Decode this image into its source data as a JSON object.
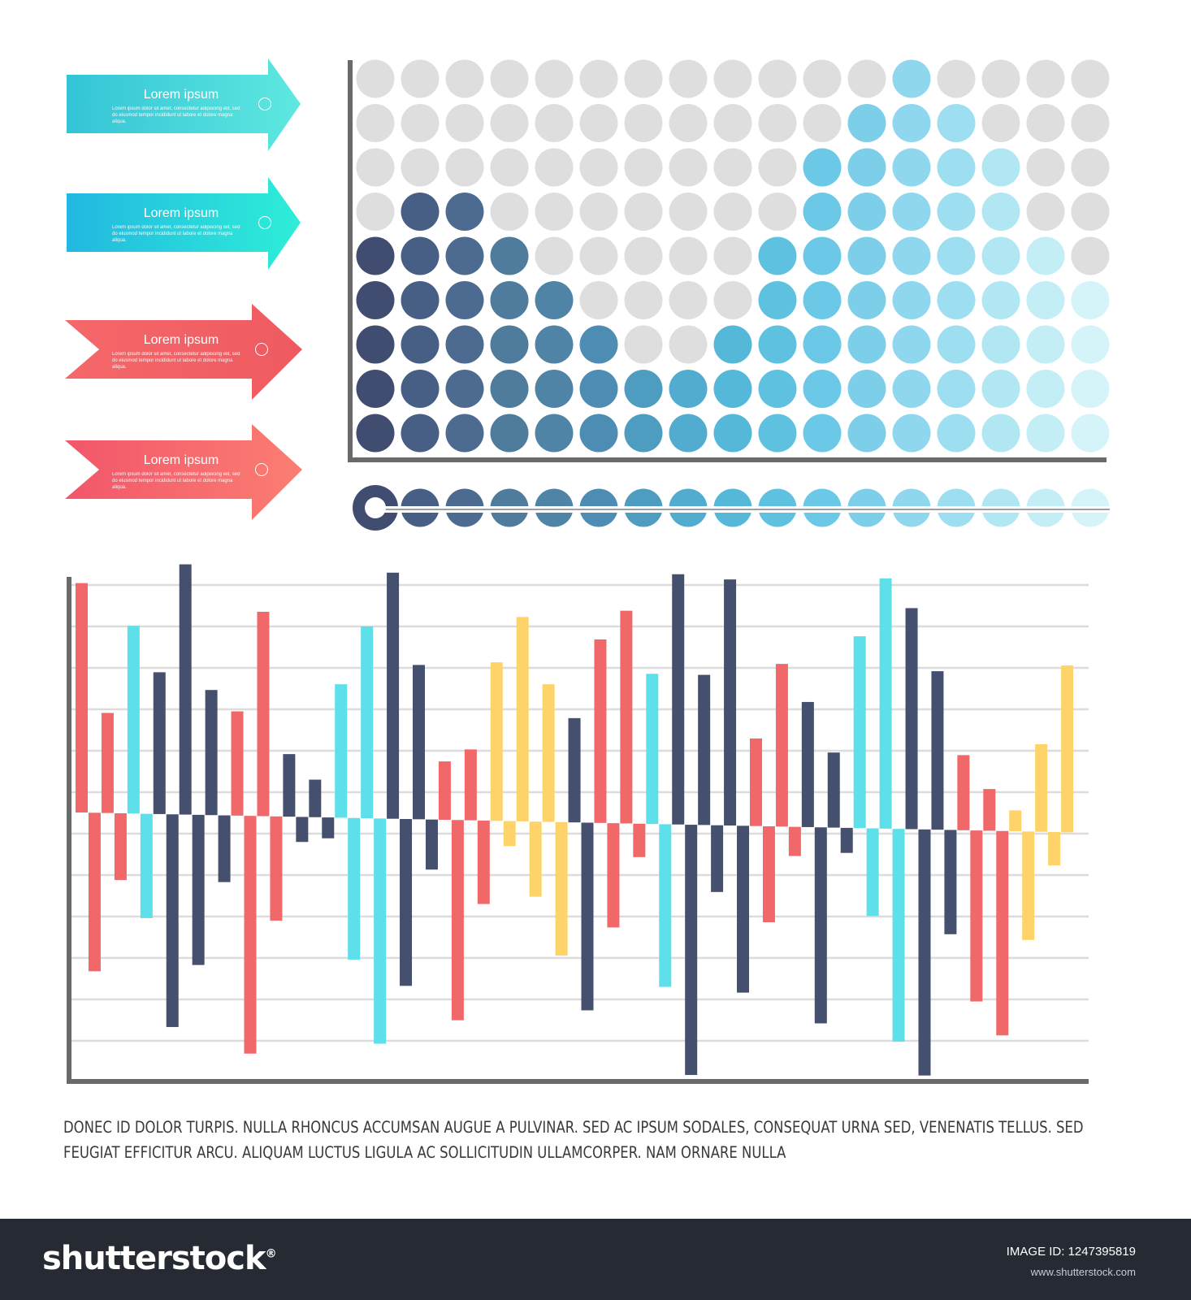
{
  "palette": {
    "coral": "#f0686a",
    "cyan": "#5ee0ea",
    "navy": "#45506f",
    "yellow": "#fed46a",
    "axis": "#6a6a6a",
    "grid": "#dcdcdc",
    "inactive_dot": "#dedede"
  },
  "arrows": [
    {
      "title": "Lorem ipsum",
      "text": "Lorem ipsum dolor sit amet, consectetur adipiscing elit, sed do eiusmod tempor incididunt ut labore et dolore magna aliqua.",
      "color_start": "#33c4d6",
      "color_end": "#5ee8e0",
      "shape": "chevron-right"
    },
    {
      "title": "Lorem ipsum",
      "text": "Lorem ipsum dolor sit amet, consectetur adipiscing elit, sed do eiusmod tempor incididunt ut labore et dolore magna aliqua.",
      "color_start": "#22b8e0",
      "color_end": "#2eeed8",
      "shape": "chevron-right"
    },
    {
      "title": "Lorem ipsum",
      "text": "Lorem ipsum dolor sit amet, consectetur adipiscing elit, sed do eiusmod tempor incididunt ut labore et dolore magna aliqua.",
      "color_start": "#f5686a",
      "color_end": "#ee5a60",
      "shape": "notched"
    },
    {
      "title": "Lorem ipsum",
      "text": "Lorem ipsum dolor sit amet, consectetur adipiscing elit, sed do eiusmod tempor incididunt ut labore et dolore magna aliqua.",
      "color_start": "#f2566a",
      "color_end": "#fb7e72",
      "shape": "notched"
    }
  ],
  "chart_data": [
    {
      "type": "heatmap",
      "description_kind": "dot-matrix column chart",
      "columns": 17,
      "rows": 9,
      "values": [
        5,
        6,
        6,
        5,
        4,
        3,
        2,
        2,
        3,
        5,
        7,
        8,
        9,
        8,
        7,
        5,
        4
      ],
      "column_colors": [
        "#414d70",
        "#475f84",
        "#4d6b91",
        "#4f7b9c",
        "#5084a6",
        "#4d8db3",
        "#4f9cc1",
        "#52acd0",
        "#56b8d9",
        "#5ec1e0",
        "#6bc8e6",
        "#7dcee9",
        "#8fd7ee",
        "#9ddff0",
        "#b0e7f3",
        "#c3eef6",
        "#d4f4f9"
      ],
      "slider_position": 0
    },
    {
      "type": "bar",
      "description_kind": "diverging bar chart",
      "ylim": [
        -6,
        6
      ],
      "grid": true,
      "series": [
        {
          "values": [
            5.5,
            -3.8,
            2.4,
            -1.6,
            4.5,
            -2.5,
            3.4,
            -5.1,
            6.0,
            -3.6,
            3.0,
            -1.6,
            2.5,
            -5.7,
            4.9,
            -2.5,
            1.5,
            -0.6,
            0.9,
            -0.5,
            3.2,
            -3.4,
            4.6,
            -5.4,
            5.9,
            -4.0,
            3.7,
            -1.2,
            1.4,
            -4.8,
            1.7,
            -2.0,
            3.8,
            -0.6,
            4.9,
            -1.8,
            3.3,
            -3.2,
            2.5,
            -4.5,
            4.4,
            -2.5,
            5.1,
            -0.8,
            3.6,
            -3.9,
            6.0,
            -6.0,
            3.6,
            -1.6,
            5.9,
            -4.0,
            2.1,
            -2.3,
            3.9,
            -0.7,
            3.0,
            -4.7,
            1.8,
            -0.6,
            4.6,
            -2.1,
            6.0,
            -5.1,
            5.3,
            -5.9,
            3.8,
            -2.5,
            1.8,
            -4.1,
            1.0,
            -4.9,
            0.5,
            -2.6,
            2.1,
            -0.8,
            4.0,
            0.0
          ]
        }
      ],
      "bar_colors_cycle": [
        "#f0686a",
        "#f0686a",
        "#5ee0ea",
        "#45506f",
        "#45506f",
        "#45506f",
        "#f0686a",
        "#f0686a",
        "#45506f",
        "#45506f",
        "#5ee0ea",
        "#5ee0ea",
        "#45506f",
        "#45506f",
        "#f0686a",
        "#f0686a",
        "#fed46a",
        "#fed46a",
        "#fed46a",
        "#45506f"
      ]
    }
  ],
  "caption": "Donec id dolor turpis. Nulla rhoncus accumsan augue a pulvinar. Sed ac ipsum sodales, consequat urna sed, venenatis tellus. Sed feugiat efficitur arcu. Aliquam luctus ligula ac sollicitudin ullamcorper. Nam ornare nulla",
  "footer": {
    "logo": "shutterstock",
    "logo_mark": "®",
    "image_id_label": "IMAGE ID: 1247395819",
    "url": "www.shutterstock.com"
  }
}
